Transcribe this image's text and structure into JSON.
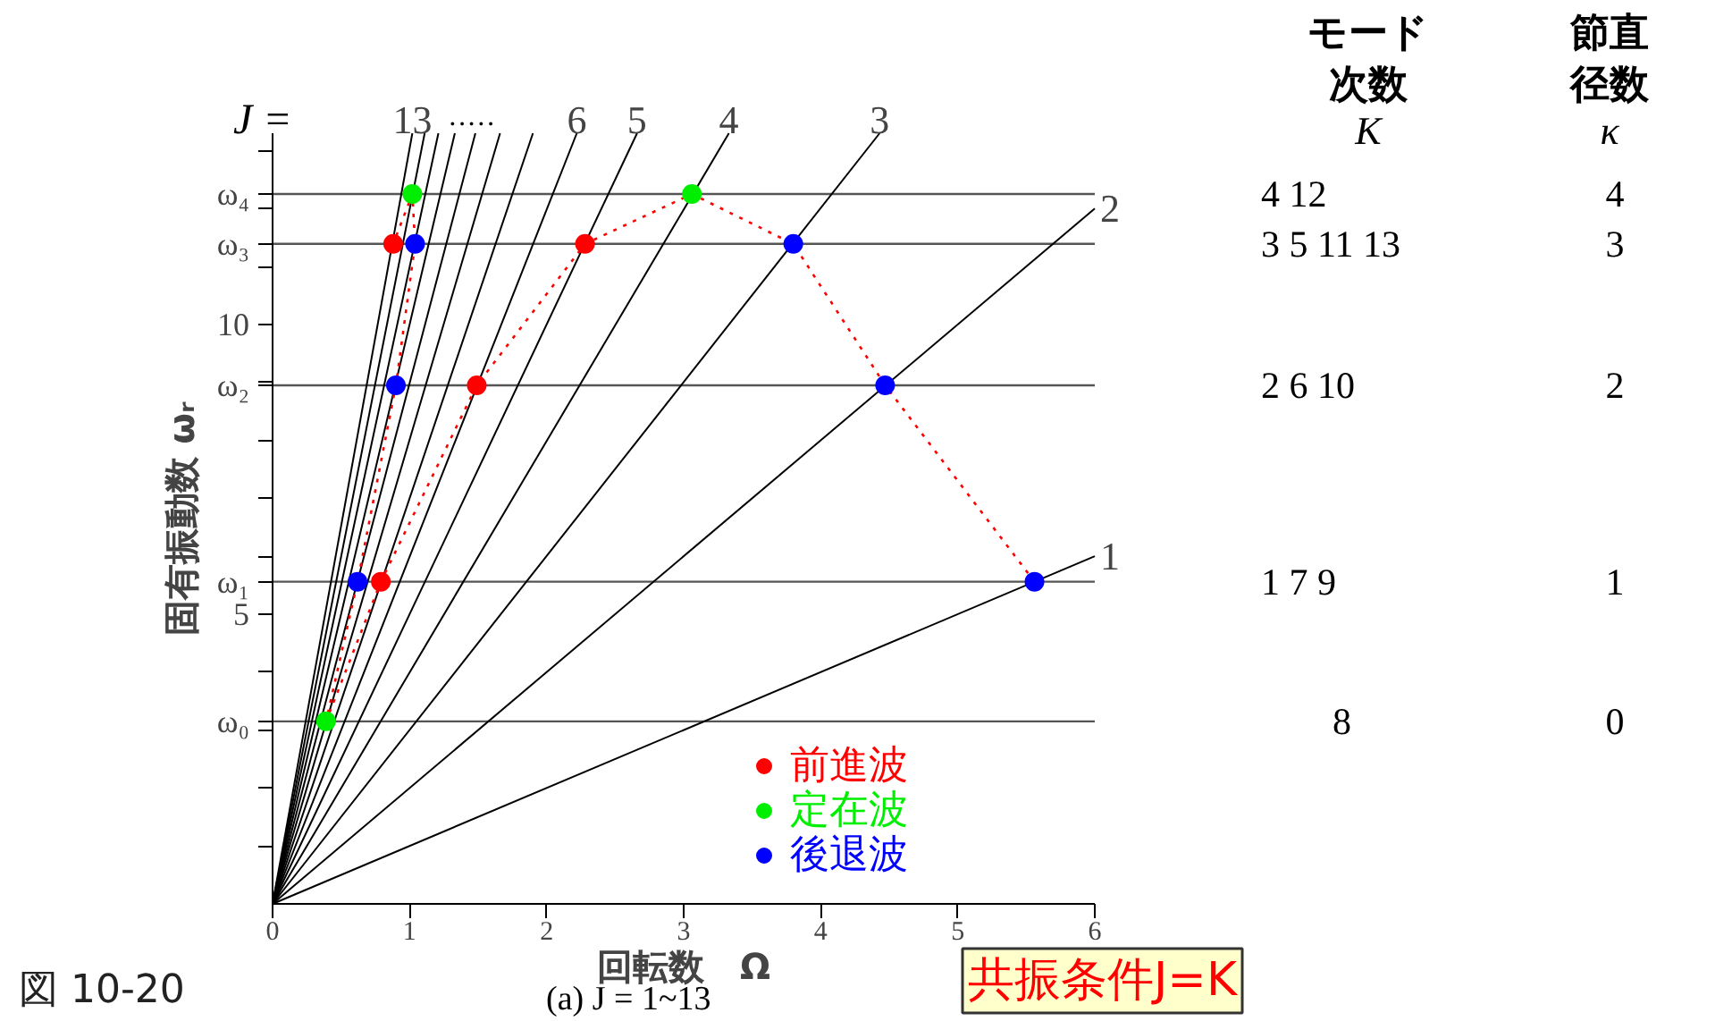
{
  "chart_data": {
    "type": "line",
    "xlabel": "回転数　Ω",
    "ylabel": "固有振動数 ωᵣ",
    "xlim": [
      0,
      6
    ],
    "xticks": [
      0,
      1,
      2,
      3,
      4,
      5,
      6
    ],
    "ylim": [
      0,
      13.3
    ],
    "yticks": [
      {
        "value": 1,
        "label": null
      },
      {
        "value": 2,
        "label": null
      },
      {
        "value": 3,
        "label": null
      },
      {
        "value": 4,
        "label": null
      },
      5,
      {
        "value": 6,
        "label": null
      },
      {
        "value": 7,
        "label": null
      },
      {
        "value": 8,
        "label": null
      },
      {
        "value": 9,
        "label": null
      },
      10,
      {
        "value": 11,
        "label": null
      },
      {
        "value": 12,
        "label": null
      },
      {
        "value": 13,
        "label": null
      },
      {
        "value": 3.15,
        "label": "ω₀"
      },
      {
        "value": 5.56,
        "label": "ω₁"
      },
      {
        "value": 8.95,
        "label": "ω₂"
      },
      {
        "value": 11.39,
        "label": "ω₃"
      },
      {
        "value": 12.25,
        "label": "ω₄"
      }
    ],
    "ref_lines": [
      {
        "axis": "y",
        "value": 3.15
      },
      {
        "axis": "y",
        "value": 5.56
      },
      {
        "axis": "y",
        "value": 8.95
      },
      {
        "axis": "y",
        "value": 11.39
      },
      {
        "axis": "y",
        "value": 12.25
      }
    ],
    "grid": false,
    "legend": "bottom right",
    "series": [
      {
        "name": "1",
        "color": "#000000",
        "x": [
          0,
          6
        ],
        "values": [
          0,
          6
        ]
      },
      {
        "name": "2",
        "color": "#000000",
        "x": [
          0,
          6
        ],
        "values": [
          0,
          12
        ]
      },
      {
        "name": "3",
        "color": "#000000",
        "x": [
          0,
          4.43
        ],
        "values": [
          0,
          13.3
        ]
      },
      {
        "name": "4",
        "color": "#000000",
        "x": [
          0,
          3.33
        ],
        "values": [
          0,
          13.3
        ]
      },
      {
        "name": "5",
        "color": "#000000",
        "x": [
          0,
          2.66
        ],
        "values": [
          0,
          13.3
        ]
      },
      {
        "name": "6",
        "color": "#000000",
        "x": [
          0,
          2.22
        ],
        "values": [
          0,
          13.3
        ]
      },
      {
        "color": "#000000",
        "x": [
          0,
          1.9
        ],
        "values": [
          0,
          13.3
        ]
      },
      {
        "color": "#000000",
        "x": [
          0,
          1.66
        ],
        "values": [
          0,
          13.3
        ]
      },
      {
        "color": "#000000",
        "x": [
          0,
          1.48
        ],
        "values": [
          0,
          13.3
        ]
      },
      {
        "color": "#000000",
        "x": [
          0,
          1.33
        ],
        "values": [
          0,
          13.3
        ]
      },
      {
        "color": "#000000",
        "x": [
          0,
          1.21
        ],
        "values": [
          0,
          13.3
        ]
      },
      {
        "color": "#000000",
        "x": [
          0,
          1.11
        ],
        "values": [
          0,
          13.3
        ]
      },
      {
        "name": "13",
        "color": "#000000",
        "x": [
          0,
          1.02
        ],
        "values": [
          0,
          13.3
        ]
      },
      {
        "color": "#ff0000",
        "line_style": "dotted",
        "x": [
          5.56,
          4.47,
          3.8,
          3.06,
          2.28,
          1.49,
          0.79,
          0.39,
          0.62,
          0.9,
          1.04,
          1.02,
          0.88
        ],
        "values": [
          5.56,
          8.95,
          11.39,
          12.25,
          11.39,
          8.95,
          5.56,
          3.15,
          5.56,
          8.95,
          11.39,
          12.25,
          11.39
        ]
      },
      {
        "type": "scatter",
        "name": "前進波",
        "color": "#ff0000",
        "marker": "circle",
        "x": [
          2.28,
          1.49,
          0.79,
          0.88
        ],
        "values": [
          11.39,
          8.95,
          5.56,
          11.39
        ]
      },
      {
        "type": "scatter",
        "name": "定在波",
        "color": "#00ee00",
        "marker": "circle",
        "x": [
          3.06,
          0.39,
          1.02
        ],
        "values": [
          12.25,
          3.15,
          12.25
        ]
      },
      {
        "type": "scatter",
        "name": "後退波",
        "color": "#0000ff",
        "marker": "circle",
        "x": [
          5.56,
          4.47,
          3.8,
          0.62,
          0.9,
          1.04
        ],
        "values": [
          5.56,
          8.95,
          11.39,
          5.56,
          8.95,
          11.39
        ]
      }
    ],
    "annotations": [
      "J =",
      "·····",
      "モード次数",
      "K",
      "節直径数",
      "κ",
      "図 10-20",
      "(a)  J = 1~13",
      "共振条件J=K",
      "4    12",
      "3 5 11 13",
      "2 6 10",
      "1 7  9",
      "8",
      "4",
      "3",
      "2",
      "1",
      "0"
    ]
  }
}
